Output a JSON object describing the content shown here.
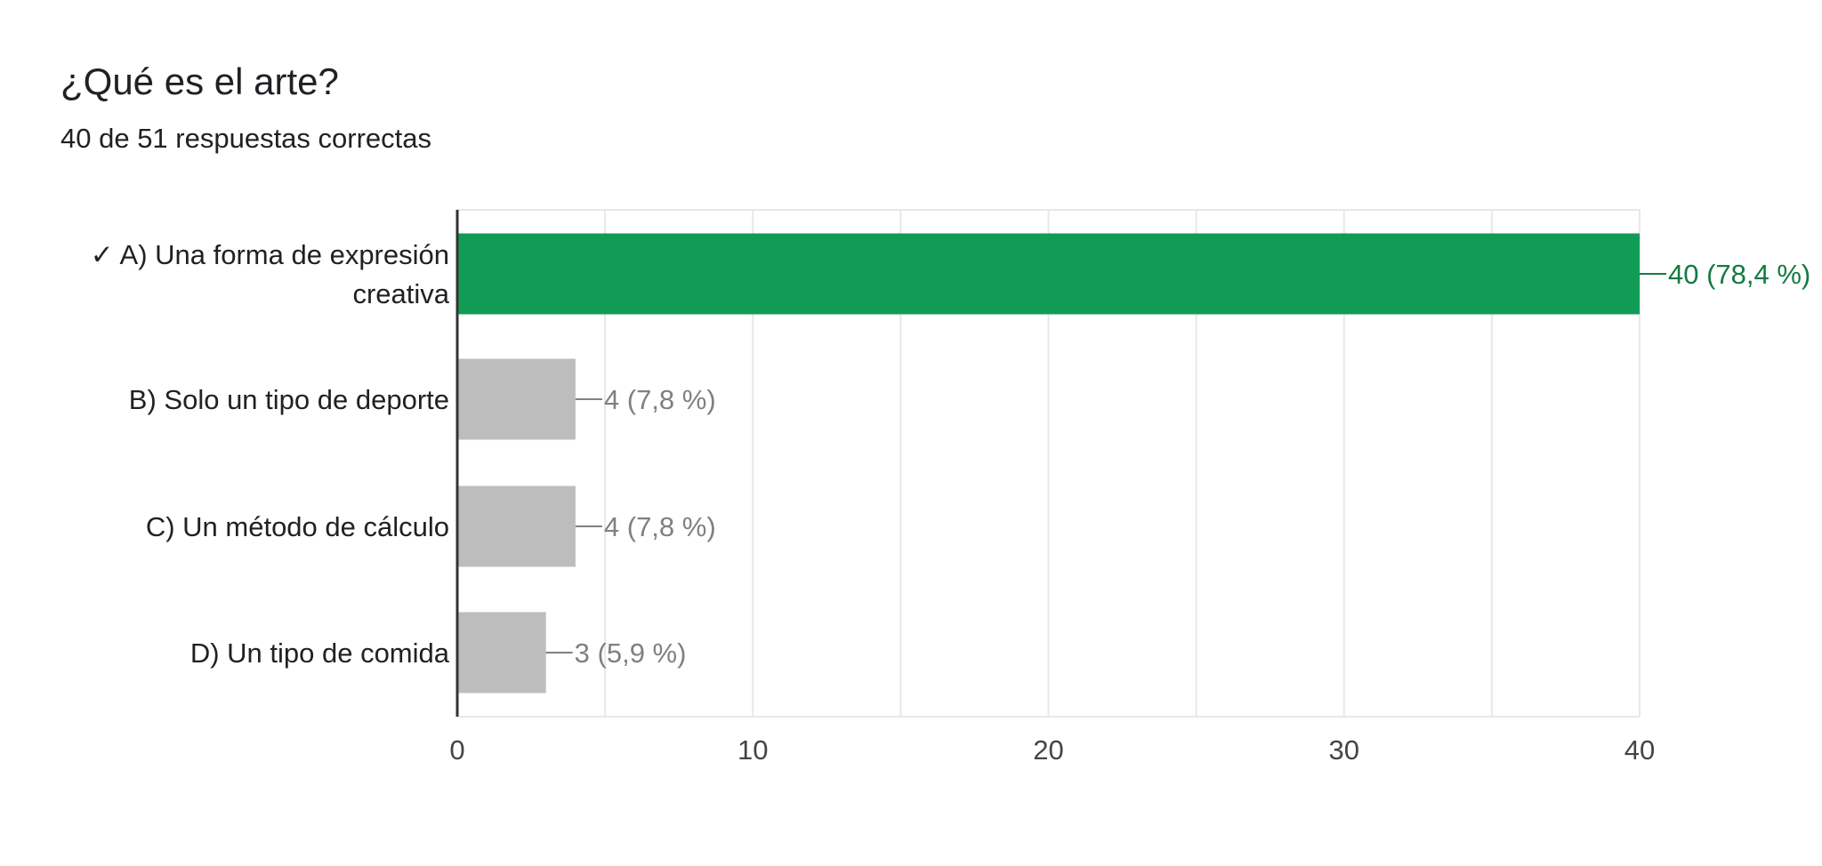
{
  "question": {
    "title": "¿Qué es el arte?",
    "score_summary": "40 de 51 respuestas correctas"
  },
  "colors": {
    "correct_bar": "#119C56",
    "correct_label": "#137A43",
    "other_bar": "#BDBDBD",
    "other_label": "#808080",
    "text": "#202124",
    "grid": "#E8E8E8",
    "axis": "#333333"
  },
  "chart_data": {
    "type": "bar",
    "orientation": "horizontal",
    "title": "",
    "xlabel": "",
    "ylabel": "",
    "xlim": [
      0,
      40
    ],
    "grid": true,
    "legend": "none",
    "ticks": [
      "0",
      "10",
      "20",
      "30",
      "40"
    ],
    "tick_values": [
      0,
      10,
      20,
      30,
      40
    ],
    "categories": [
      {
        "lines": [
          "✓ A) Una forma de expresión",
          "creativa"
        ],
        "correct": true
      },
      {
        "lines": [
          "B) Solo un tipo de deporte"
        ],
        "correct": false
      },
      {
        "lines": [
          "C) Un método de cálculo"
        ],
        "correct": false
      },
      {
        "lines": [
          "D) Un tipo de comida"
        ],
        "correct": false
      }
    ],
    "values": [
      40,
      4,
      4,
      3
    ],
    "value_labels": [
      "40 (78,4 %)",
      "4 (7,8 %)",
      "4 (7,8 %)",
      "3 (5,9 %)"
    ]
  }
}
